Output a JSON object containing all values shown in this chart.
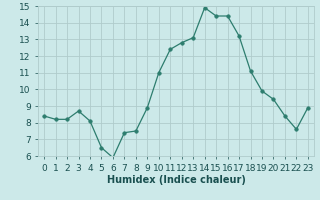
{
  "x": [
    0,
    1,
    2,
    3,
    4,
    5,
    6,
    7,
    8,
    9,
    10,
    11,
    12,
    13,
    14,
    15,
    16,
    17,
    18,
    19,
    20,
    21,
    22,
    23
  ],
  "y": [
    8.4,
    8.2,
    8.2,
    8.7,
    8.1,
    6.5,
    5.9,
    7.4,
    7.5,
    8.9,
    11.0,
    12.4,
    12.8,
    13.1,
    14.9,
    14.4,
    14.4,
    13.2,
    11.1,
    9.9,
    9.4,
    8.4,
    7.6,
    8.9
  ],
  "line_color": "#2d7d6e",
  "marker": "o",
  "marker_size": 2.5,
  "bg_color": "#cce9e9",
  "grid_color": "#b0cccc",
  "xlabel": "Humidex (Indice chaleur)",
  "ylim": [
    6,
    15
  ],
  "xlim_min": -0.5,
  "xlim_max": 23.5,
  "yticks": [
    6,
    7,
    8,
    9,
    10,
    11,
    12,
    13,
    14,
    15
  ],
  "xticks": [
    0,
    1,
    2,
    3,
    4,
    5,
    6,
    7,
    8,
    9,
    10,
    11,
    12,
    13,
    14,
    15,
    16,
    17,
    18,
    19,
    20,
    21,
    22,
    23
  ],
  "xlabel_fontsize": 7,
  "tick_fontsize": 6.5,
  "label_color": "#1a5050"
}
